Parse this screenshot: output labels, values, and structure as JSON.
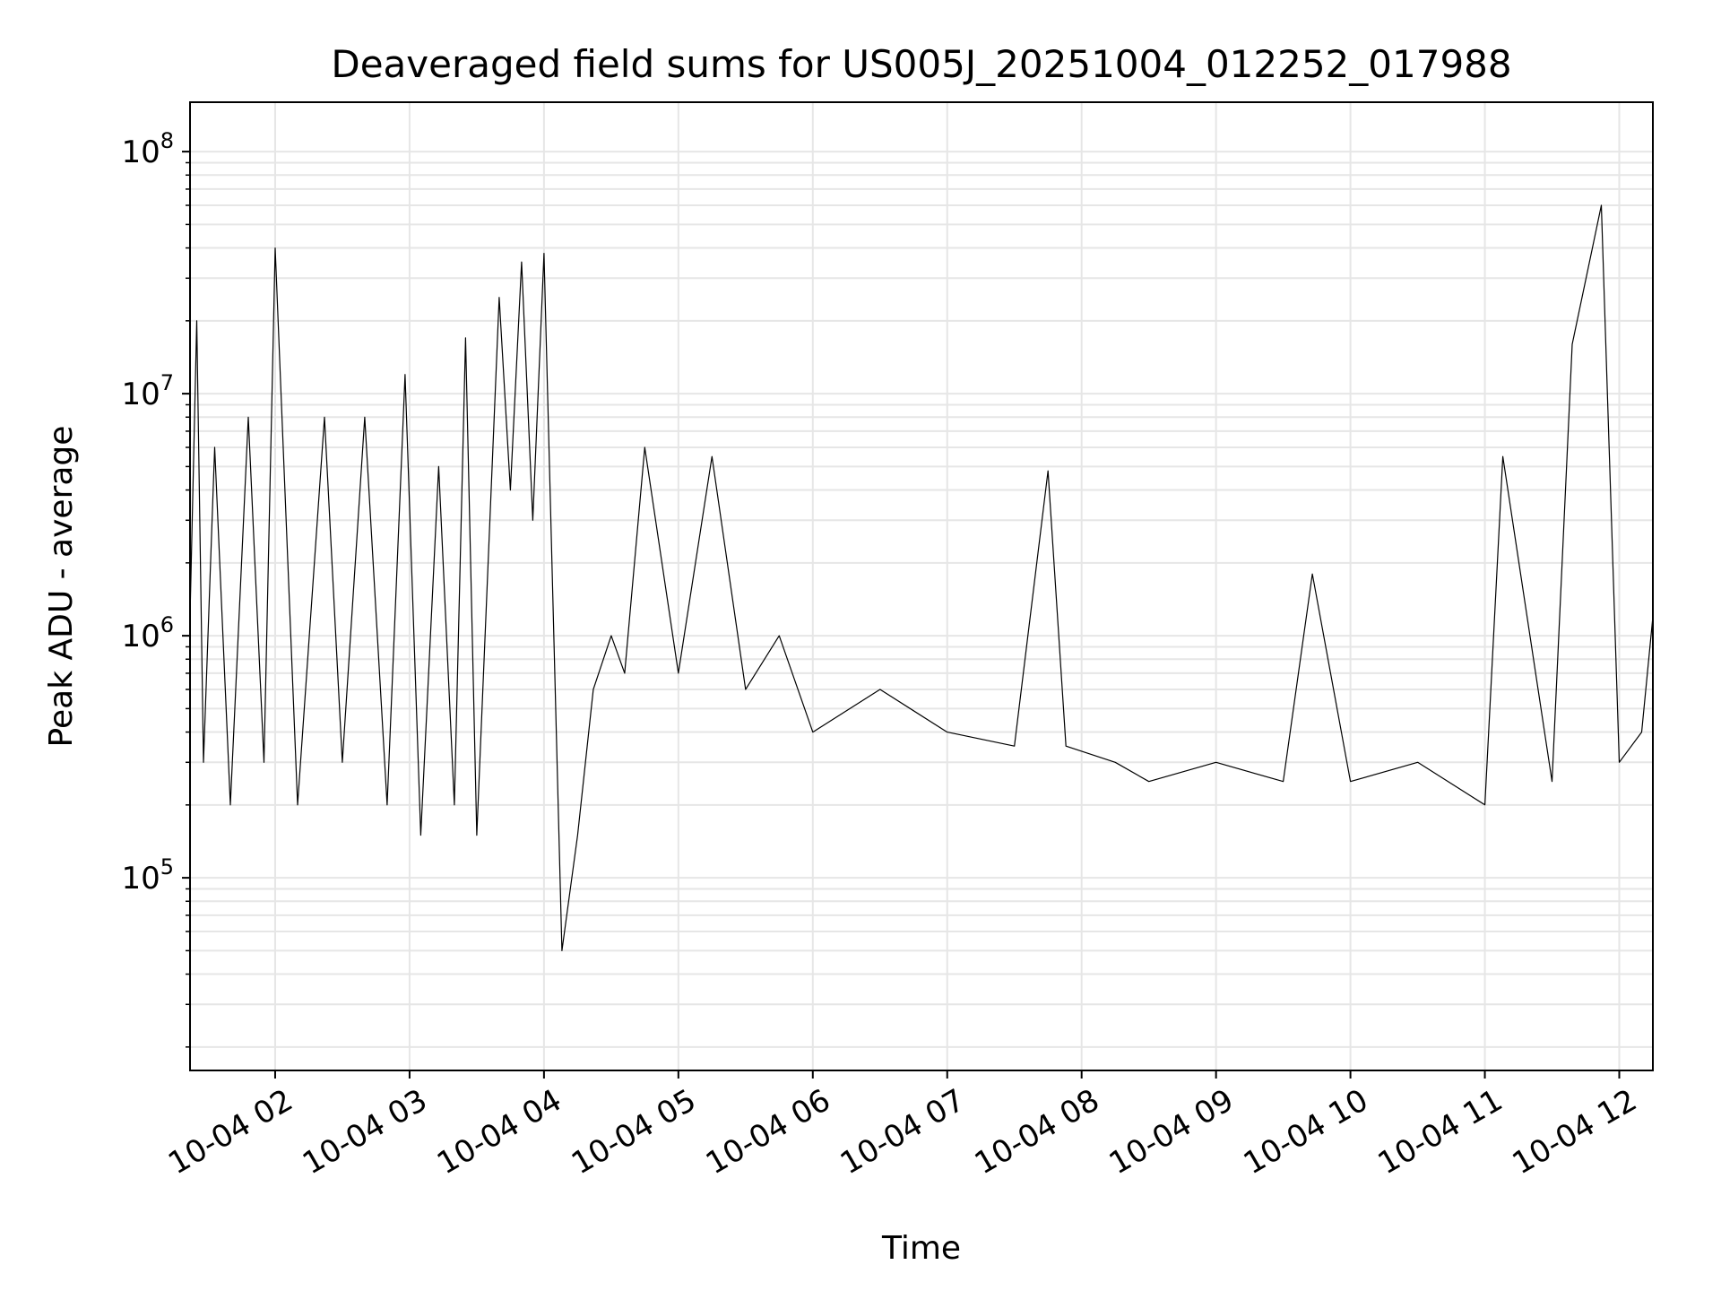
{
  "chart_data": {
    "type": "line",
    "title": "Deaveraged field sums for US005J_20251004_012252_017988",
    "xlabel": "Time",
    "ylabel": "Peak ADU - average",
    "yscale": "log",
    "ylim": [
      16000,
      160000000
    ],
    "xlim": [
      "10-04 01:22",
      "10-04 12:15"
    ],
    "x_ticks": [
      "10-04 02",
      "10-04 03",
      "10-04 04",
      "10-04 05",
      "10-04 06",
      "10-04 07",
      "10-04 08",
      "10-04 09",
      "10-04 10",
      "10-04 11",
      "10-04 12"
    ],
    "y_ticks": [
      {
        "value": 100000,
        "base": "10",
        "exp": "5"
      },
      {
        "value": 1000000,
        "base": "10",
        "exp": "6"
      },
      {
        "value": 10000000,
        "base": "10",
        "exp": "7"
      },
      {
        "value": 100000000,
        "base": "10",
        "exp": "8"
      }
    ],
    "grid": true,
    "line_color": "#000000",
    "grid_color": "#e6e6e6",
    "series": [
      {
        "x": [
          "10-04 01:22",
          "10-04 01:25",
          "10-04 01:28",
          "10-04 01:33",
          "10-04 01:40",
          "10-04 01:48",
          "10-04 01:55",
          "10-04 02:00",
          "10-04 02:10",
          "10-04 02:22",
          "10-04 02:30",
          "10-04 02:40",
          "10-04 02:50",
          "10-04 02:58",
          "10-04 03:05",
          "10-04 03:13",
          "10-04 03:20",
          "10-04 03:25",
          "10-04 03:30",
          "10-04 03:40",
          "10-04 03:45",
          "10-04 03:50",
          "10-04 03:55",
          "10-04 04:00",
          "10-04 04:08",
          "10-04 04:15",
          "10-04 04:22",
          "10-04 04:30",
          "10-04 04:36",
          "10-04 04:45",
          "10-04 05:00",
          "10-04 05:15",
          "10-04 05:30",
          "10-04 05:45",
          "10-04 06:00",
          "10-04 06:30",
          "10-04 07:00",
          "10-04 07:30",
          "10-04 07:45",
          "10-04 07:53",
          "10-04 08:15",
          "10-04 08:30",
          "10-04 09:00",
          "10-04 09:30",
          "10-04 09:43",
          "10-04 10:00",
          "10-04 10:30",
          "10-04 11:00",
          "10-04 11:08",
          "10-04 11:30",
          "10-04 11:39",
          "10-04 11:52",
          "10-04 12:00",
          "10-04 12:10",
          "10-04 12:15"
        ],
        "y": [
          1200000,
          20000000,
          300000,
          6000000,
          200000,
          8000000,
          300000,
          40000000,
          200000,
          8000000,
          300000,
          8000000,
          200000,
          12000000,
          150000,
          5000000,
          200000,
          17000000,
          150000,
          25000000,
          4000000,
          35000000,
          3000000,
          38000000,
          50000,
          150000,
          600000,
          1000000,
          700000,
          6000000,
          700000,
          5500000,
          600000,
          1000000,
          400000,
          600000,
          400000,
          350000,
          4800000,
          350000,
          300000,
          250000,
          300000,
          250000,
          1800000,
          250000,
          300000,
          200000,
          5500000,
          250000,
          16000000,
          60000000,
          300000,
          400000,
          1200000
        ]
      }
    ]
  }
}
